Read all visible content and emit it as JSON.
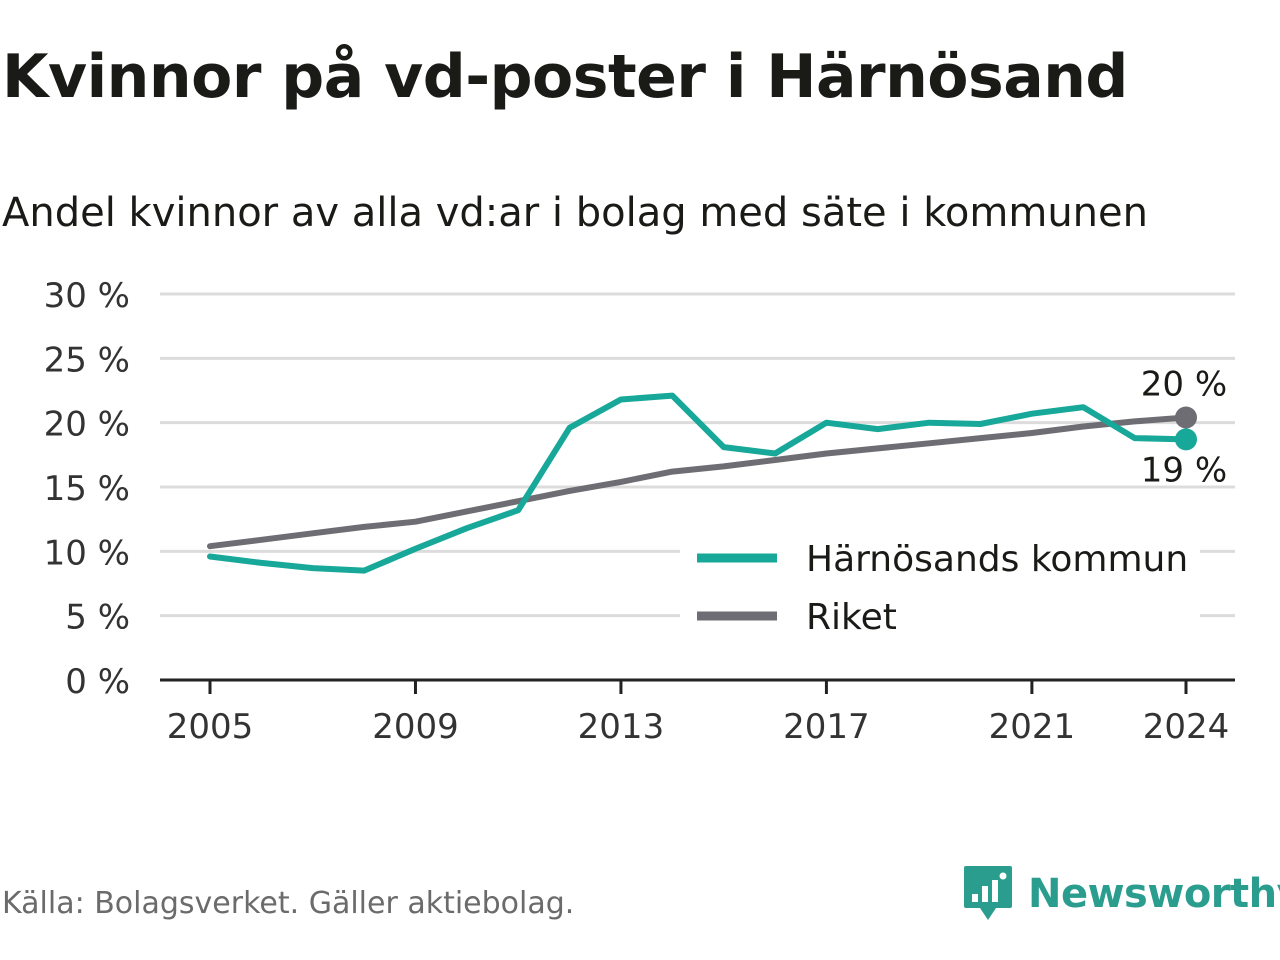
{
  "colors": {
    "accent": "#17a89a",
    "national": "#6e6d73",
    "grid": "#dcdcdc",
    "text": "#1a1a17",
    "muted": "#6b6b6b",
    "brand": "#2a9d8f"
  },
  "chart_data": {
    "type": "line",
    "title": "Kvinnor på vd-poster i Härnösand",
    "subtitle": "Andel kvinnor av alla vd:ar i bolag med säte i kommunen",
    "x": [
      2005,
      2006,
      2007,
      2008,
      2009,
      2010,
      2011,
      2012,
      2013,
      2014,
      2015,
      2016,
      2017,
      2018,
      2019,
      2020,
      2021,
      2022,
      2023,
      2024
    ],
    "xticks": [
      2005,
      2009,
      2013,
      2017,
      2021,
      2024
    ],
    "xlim": [
      2004,
      2025
    ],
    "ylim": [
      0,
      30
    ],
    "yticks": [
      {
        "value": 0,
        "label": "0 %"
      },
      {
        "value": 5,
        "label": "5 %"
      },
      {
        "value": 10,
        "label": "10 %"
      },
      {
        "value": 15,
        "label": "15 %"
      },
      {
        "value": 20,
        "label": "20 %"
      },
      {
        "value": 25,
        "label": "25 %"
      },
      {
        "value": 30,
        "label": "30 %"
      }
    ],
    "grid": true,
    "legend_position": "bottom-right",
    "series": [
      {
        "name": "Härnösands kommun",
        "color": "#17a89a",
        "values": [
          9.6,
          9.1,
          8.7,
          8.5,
          10.2,
          11.8,
          13.2,
          19.6,
          21.8,
          22.1,
          18.1,
          17.6,
          20.0,
          19.5,
          20.0,
          19.9,
          20.7,
          21.2,
          18.8,
          18.7
        ],
        "end_label": "19 %"
      },
      {
        "name": "Riket",
        "color": "#6e6d73",
        "values": [
          10.4,
          10.9,
          11.4,
          11.9,
          12.3,
          13.1,
          13.9,
          14.7,
          15.4,
          16.2,
          16.6,
          17.1,
          17.6,
          18.0,
          18.4,
          18.8,
          19.2,
          19.7,
          20.1,
          20.4
        ],
        "end_label": "20 %"
      }
    ]
  },
  "source_text": "Källa: Bolagsverket. Gäller aktiebolag.",
  "brand": {
    "name": "Newsworthy",
    "logo_icon": "newsworthy-logo-icon"
  }
}
